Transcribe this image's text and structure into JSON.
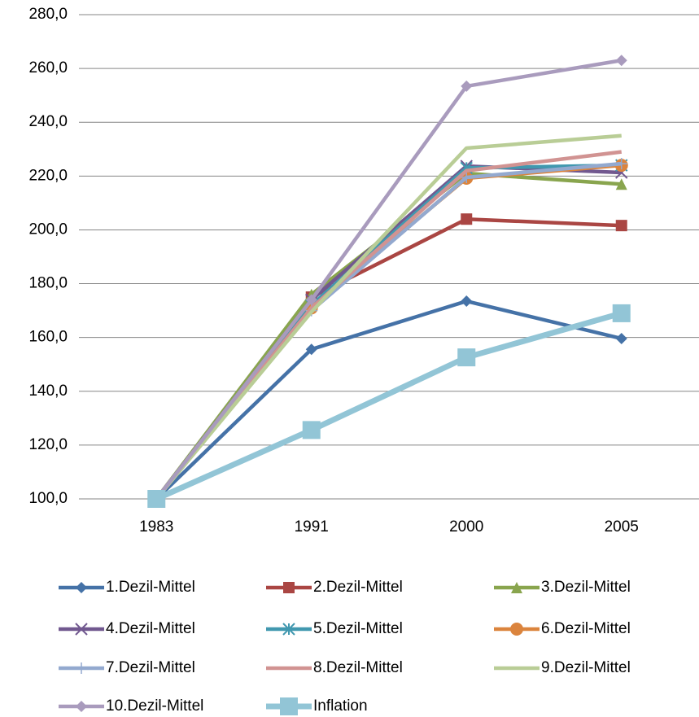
{
  "chart_data": {
    "type": "line",
    "categories": [
      "1983",
      "1991",
      "2000",
      "2005"
    ],
    "ylim": [
      100,
      280
    ],
    "yticks": [
      {
        "value": 100,
        "label": "100,0"
      },
      {
        "value": 120,
        "label": "120,0"
      },
      {
        "value": 140,
        "label": "140,0"
      },
      {
        "value": 160,
        "label": "160,0"
      },
      {
        "value": 180,
        "label": "180,0"
      },
      {
        "value": 200,
        "label": "200,0"
      },
      {
        "value": 220,
        "label": "220,0"
      },
      {
        "value": 240,
        "label": "240,0"
      },
      {
        "value": 260,
        "label": "260,0"
      },
      {
        "value": 280,
        "label": "280,0"
      }
    ],
    "grid": true,
    "legend": "bottom",
    "series": [
      {
        "name": "1.Dezil-Mittel",
        "color": "#4572a7",
        "marker": "diamond",
        "values": [
          100,
          155.6,
          173.5,
          159.6
        ]
      },
      {
        "name": "2.Dezil-Mittel",
        "color": "#aa4643",
        "marker": "square",
        "values": [
          100,
          175,
          204,
          201.6
        ]
      },
      {
        "name": "3.Dezil-Mittel",
        "color": "#89a54e",
        "marker": "triangle",
        "values": [
          100,
          176,
          221,
          217
        ]
      },
      {
        "name": "4.Dezil-Mittel",
        "color": "#71588f",
        "marker": "x",
        "values": [
          100,
          174,
          223.7,
          221.3
        ]
      },
      {
        "name": "5.Dezil-Mittel",
        "color": "#4198af",
        "marker": "star",
        "values": [
          100,
          172,
          223,
          224
        ]
      },
      {
        "name": "6.Dezil-Mittel",
        "color": "#db843d",
        "marker": "circle",
        "values": [
          100,
          171,
          219.2,
          224
        ]
      },
      {
        "name": "7.Dezil-Mittel",
        "color": "#93a9cf",
        "marker": "plus",
        "values": [
          100,
          170,
          219.5,
          224.6
        ]
      },
      {
        "name": "8.Dezil-Mittel",
        "color": "#d19392",
        "marker": "none",
        "values": [
          100,
          171,
          222,
          229
        ]
      },
      {
        "name": "9.Dezil-Mittel",
        "color": "#b9cd96",
        "marker": "none",
        "values": [
          100,
          169.5,
          230.4,
          235
        ]
      },
      {
        "name": "10.Dezil-Mittel",
        "color": "#a99bbd",
        "marker": "diamond",
        "values": [
          100,
          174,
          253.4,
          263
        ]
      },
      {
        "name": "Inflation",
        "color": "#92c5d6",
        "marker": "bigsquare",
        "values": [
          100,
          125.6,
          152.6,
          169
        ]
      }
    ]
  }
}
